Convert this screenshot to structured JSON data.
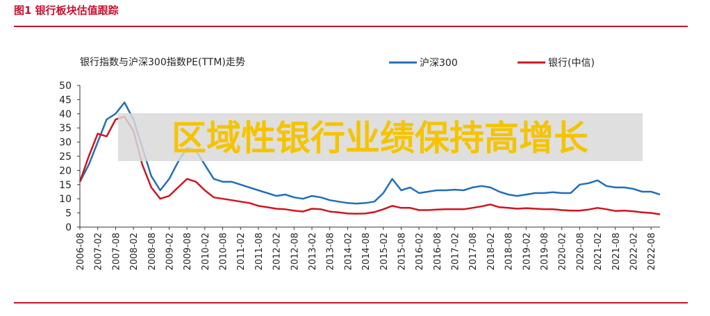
{
  "header": {
    "title": "图1 银行板块估值跟踪"
  },
  "chart_data": {
    "type": "line",
    "title": "银行指数与沪深300指数PE(TTM)走势",
    "annotation": "区域性银行业绩保持高增长",
    "x": [
      "2006-08",
      null,
      "2007-02",
      null,
      "2007-08",
      null,
      "2008-02",
      null,
      "2008-08",
      null,
      "2009-02",
      null,
      "2009-08",
      null,
      "2010-02",
      null,
      "2010-08",
      null,
      "2011-02",
      null,
      "2011-08",
      null,
      "2012-02",
      null,
      "2012-08",
      null,
      "2013-02",
      null,
      "2013-08",
      null,
      "2014-02",
      null,
      "2014-08",
      null,
      "2015-02",
      null,
      "2015-08",
      null,
      "2016-02",
      null,
      "2016-08",
      null,
      "2017-02",
      null,
      "2017-08",
      null,
      "2018-02",
      null,
      "2018-08",
      null,
      "2019-02",
      null,
      "2019-08",
      null,
      "2020-02",
      null,
      "2020-08",
      null,
      "2021-02",
      null,
      "2021-08",
      null,
      "2022-02",
      null,
      "2022-08",
      null
    ],
    "series": [
      {
        "name": "沪深300",
        "color": "#1f6fb8",
        "values": [
          16,
          22,
          30,
          38,
          40,
          44,
          38,
          28,
          18,
          13,
          17,
          23,
          28,
          27,
          22,
          17,
          16,
          16,
          15,
          14,
          13,
          12,
          11,
          11.5,
          10.5,
          10,
          11,
          10.5,
          9.5,
          9,
          8.5,
          8.3,
          8.5,
          9,
          12,
          17,
          13,
          14,
          12,
          12.5,
          13,
          13,
          13.2,
          13,
          14,
          14.5,
          14,
          12.5,
          11.5,
          11,
          11.5,
          12,
          12,
          12.3,
          12,
          12,
          15,
          15.5,
          16.5,
          14.5,
          14,
          14,
          13.5,
          12.5,
          12.5,
          11.5
        ]
      },
      {
        "name": "银行(中信)",
        "color": "#d0131f",
        "values": [
          16,
          25,
          33,
          32,
          38,
          39,
          34,
          22,
          14,
          10,
          11,
          14,
          17,
          16,
          13,
          10.5,
          10,
          9.5,
          9,
          8.5,
          7.5,
          7,
          6.5,
          6.3,
          5.8,
          5.5,
          6.5,
          6.3,
          5.5,
          5.2,
          4.8,
          4.7,
          4.8,
          5.3,
          6.3,
          7.5,
          6.8,
          6.8,
          6,
          6,
          6.2,
          6.3,
          6.3,
          6.3,
          6.8,
          7.3,
          8,
          7,
          6.8,
          6.5,
          6.7,
          6.5,
          6.3,
          6.3,
          6,
          5.8,
          5.8,
          6.2,
          6.8,
          6.3,
          5.7,
          5.8,
          5.6,
          5.2,
          5,
          4.5
        ]
      }
    ],
    "ylim": [
      0,
      50
    ],
    "yticks": [
      0,
      5,
      10,
      15,
      20,
      25,
      30,
      35,
      40,
      45,
      50
    ],
    "grid": false
  }
}
